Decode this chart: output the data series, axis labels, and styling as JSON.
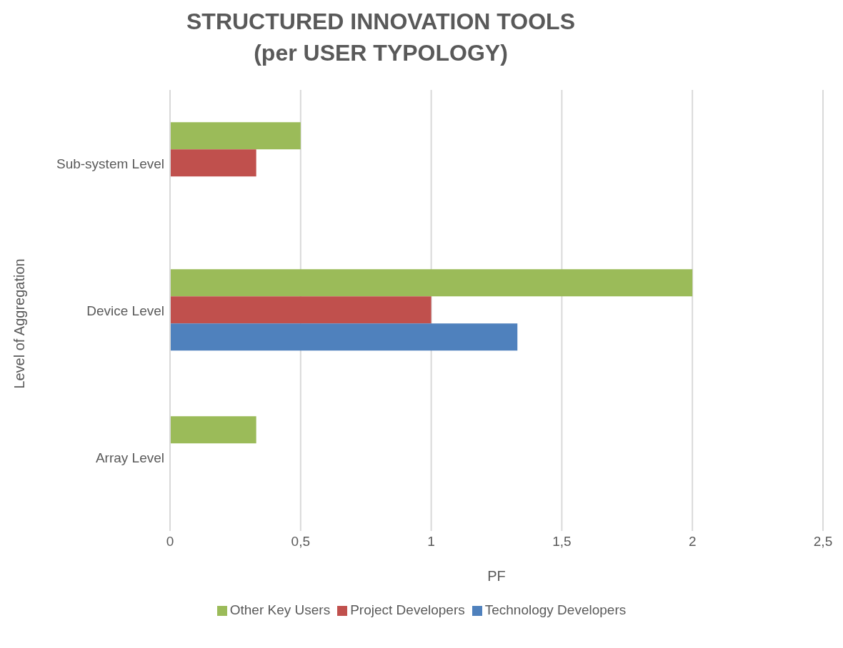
{
  "chart_data": {
    "type": "bar",
    "orientation": "horizontal",
    "title": "STRUCTURED INNOVATION TOOLS\n(per USER TYPOLOGY)",
    "xlabel": "PF",
    "ylabel": "Level of Aggregation",
    "categories": [
      "Sub-system Level",
      "Device Level",
      "Array Level"
    ],
    "series": [
      {
        "name": "Other Key Users",
        "color": "#9bbb59",
        "values": [
          0.5,
          2,
          0.33
        ]
      },
      {
        "name": "Project Developers",
        "color": "#c0504d",
        "values": [
          0.33,
          1,
          null
        ]
      },
      {
        "name": "Technology Developers",
        "color": "#4f81bd",
        "values": [
          null,
          1.33,
          null
        ]
      }
    ],
    "xlim": [
      0,
      2.5
    ],
    "xticks": [
      0,
      {
        "value": 0.5,
        "label": "0,5"
      },
      1,
      {
        "value": 1.5,
        "label": "1,5"
      },
      2,
      {
        "value": 2.5,
        "label": "2,5"
      }
    ],
    "grid": "x",
    "legend": "bottom"
  }
}
